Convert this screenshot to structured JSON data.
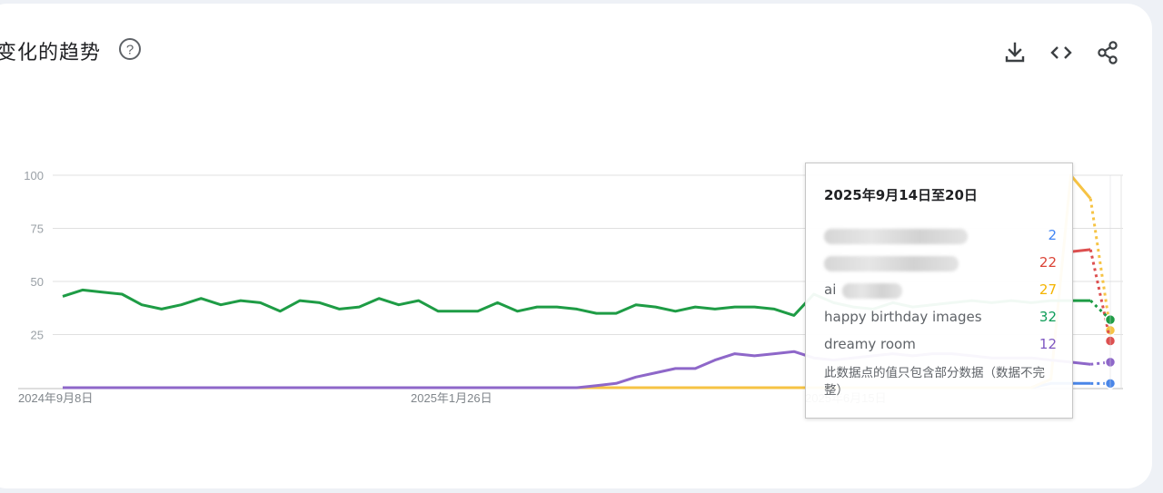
{
  "header": {
    "title": "变化的趋势",
    "help_icon": "help-circle-icon",
    "toolbar": [
      "download-icon",
      "embed-code-icon",
      "share-icon"
    ]
  },
  "tooltip": {
    "date": "2025年9月14日至20日",
    "rows": [
      {
        "label": "",
        "value": "2",
        "color": "#4285f4"
      },
      {
        "label": "",
        "value": "22",
        "color": "#db4437"
      },
      {
        "label": "ai",
        "value": "27",
        "color": "#f4b400"
      },
      {
        "label": "happy birthday images",
        "value": "32",
        "color": "#0f9d58"
      },
      {
        "label": "dreamy room",
        "value": "12",
        "color": "#7e57c2"
      }
    ],
    "note": "此数据点的值只包含部分数据（数据不完整）"
  },
  "chart_data": {
    "type": "line",
    "ylim": [
      0,
      100
    ],
    "yticks": [
      25,
      50,
      75,
      100
    ],
    "xtick_labels": [
      "2024年9月8日",
      "2025年1月26日",
      "2025年6月15日"
    ],
    "grid": true,
    "series": [
      {
        "name": "happy birthday images",
        "color": "#1e9c45",
        "values": [
          43,
          46,
          45,
          44,
          39,
          37,
          39,
          42,
          39,
          41,
          40,
          36,
          41,
          40,
          37,
          38,
          42,
          39,
          41,
          36,
          36,
          36,
          40,
          36,
          38,
          38,
          37,
          35,
          35,
          39,
          38,
          36,
          38,
          37,
          38,
          38,
          37,
          34,
          44,
          40,
          38,
          37,
          40,
          38,
          39,
          40,
          41,
          40,
          41,
          40,
          41,
          41,
          41,
          32
        ]
      },
      {
        "name": "dreamy room",
        "color": "#8e67c9",
        "values": [
          0,
          0,
          0,
          0,
          0,
          0,
          0,
          0,
          0,
          0,
          0,
          0,
          0,
          0,
          0,
          0,
          0,
          0,
          0,
          0,
          0,
          0,
          0,
          0,
          0,
          0,
          0,
          1,
          2,
          5,
          7,
          9,
          9,
          13,
          16,
          15,
          16,
          17,
          14,
          13,
          14,
          15,
          16,
          15,
          16,
          16,
          15,
          14,
          14,
          14,
          13,
          12,
          11,
          12
        ]
      },
      {
        "name": "ai",
        "color": "#f6c344",
        "values": [
          0,
          0,
          0,
          0,
          0,
          0,
          0,
          0,
          0,
          0,
          0,
          0,
          0,
          0,
          0,
          0,
          0,
          0,
          0,
          0,
          0,
          0,
          0,
          0,
          0,
          0,
          0,
          0,
          0,
          0,
          0,
          0,
          0,
          0,
          0,
          0,
          0,
          0,
          0,
          0,
          0,
          0,
          0,
          0,
          0,
          0,
          0,
          0,
          0,
          0,
          4,
          100,
          89,
          27
        ]
      },
      {
        "name": "",
        "color": "#dd5050",
        "values": [
          null,
          null,
          null,
          null,
          null,
          null,
          null,
          null,
          null,
          null,
          null,
          null,
          null,
          null,
          null,
          null,
          null,
          null,
          null,
          null,
          null,
          null,
          null,
          null,
          null,
          null,
          null,
          null,
          null,
          null,
          null,
          null,
          null,
          null,
          null,
          null,
          null,
          null,
          null,
          null,
          null,
          null,
          null,
          null,
          null,
          null,
          null,
          null,
          null,
          null,
          null,
          64,
          65,
          22
        ]
      },
      {
        "name": "",
        "color": "#4a86e8",
        "values": [
          0,
          0,
          0,
          0,
          0,
          0,
          0,
          0,
          0,
          0,
          0,
          0,
          0,
          0,
          0,
          0,
          0,
          0,
          0,
          0,
          0,
          0,
          0,
          0,
          0,
          0,
          0,
          0,
          0,
          0,
          0,
          0,
          0,
          0,
          0,
          0,
          0,
          0,
          0,
          0,
          0,
          0,
          0,
          0,
          0,
          0,
          0,
          0,
          0,
          0,
          2,
          2,
          2,
          2
        ]
      }
    ]
  }
}
